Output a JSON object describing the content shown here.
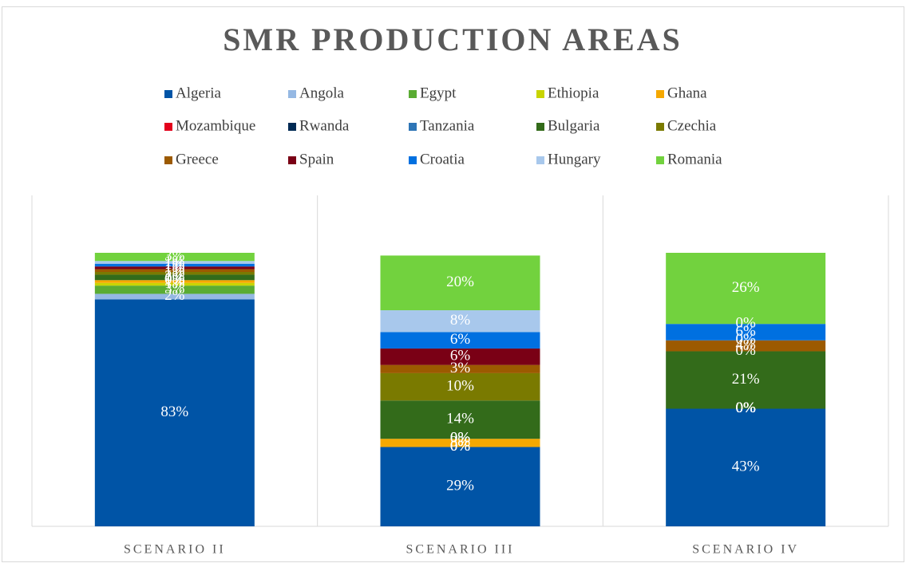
{
  "chart_data": {
    "type": "stacked_bar_100",
    "title": "SMR PRODUCTION AREAS",
    "categories": [
      "SCENARIO II",
      "SCENARIO III",
      "SCENARIO IV"
    ],
    "ylim": [
      0,
      100
    ],
    "legend": "top",
    "series": [
      {
        "name": "Algeria",
        "color": "#0054a6",
        "values": [
          83,
          29,
          43
        ],
        "value_labels": [
          "83%",
          "29%",
          "43%"
        ]
      },
      {
        "name": "Angola",
        "color": "#95b8e3",
        "values": [
          2,
          0,
          0
        ],
        "value_labels": [
          "2%",
          "0%",
          "0%"
        ]
      },
      {
        "name": "Egypt",
        "color": "#5aac33",
        "values": [
          3,
          0,
          0
        ],
        "value_labels": [
          "3%",
          "0%",
          "0%"
        ]
      },
      {
        "name": "Ethiopia",
        "color": "#c8d400",
        "values": [
          1,
          0,
          0
        ],
        "value_labels": [
          "1%",
          "0%",
          "0%"
        ]
      },
      {
        "name": "Ghana",
        "color": "#f5a800",
        "values": [
          1,
          3,
          0
        ],
        "value_labels": [
          "1%",
          "3%",
          "0%"
        ]
      },
      {
        "name": "Mozambique",
        "color": "#e3001b",
        "values": [
          0,
          0,
          0
        ],
        "value_labels": [
          "0%",
          "0%",
          "0%"
        ]
      },
      {
        "name": "Rwanda",
        "color": "#002a54",
        "values": [
          0,
          0,
          0
        ],
        "value_labels": [
          "0%",
          "0%",
          "0%"
        ]
      },
      {
        "name": "Tanzania",
        "color": "#2e75b6",
        "values": [
          0,
          0,
          0
        ],
        "value_labels": [
          "0%",
          "0%",
          "0%"
        ]
      },
      {
        "name": "Bulgaria",
        "color": "#336b1a",
        "values": [
          2,
          14,
          21
        ],
        "value_labels": [
          "2%",
          "14%",
          "21%"
        ]
      },
      {
        "name": "Czechia",
        "color": "#7a7a00",
        "values": [
          1,
          10,
          0
        ],
        "value_labels": [
          "1%",
          "10%",
          "0%"
        ]
      },
      {
        "name": "Greece",
        "color": "#9c5a00",
        "values": [
          1,
          3,
          4
        ],
        "value_labels": [
          "1%",
          "3%",
          "4%"
        ]
      },
      {
        "name": "Spain",
        "color": "#7a0015",
        "values": [
          1,
          6,
          0
        ],
        "value_labels": [
          "1%",
          "6%",
          "0%"
        ]
      },
      {
        "name": "Croatia",
        "color": "#0070e0",
        "values": [
          1,
          6,
          6
        ],
        "value_labels": [
          "1%",
          "6%",
          "6%"
        ]
      },
      {
        "name": "Hungary",
        "color": "#a8c8ec",
        "values": [
          1,
          8,
          0
        ],
        "value_labels": [
          "1%",
          "8%",
          "0%"
        ]
      },
      {
        "name": "Romania",
        "color": "#72d23e",
        "values": [
          3,
          20,
          26
        ],
        "value_labels": [
          "3%",
          "20%",
          "26%"
        ]
      }
    ]
  }
}
